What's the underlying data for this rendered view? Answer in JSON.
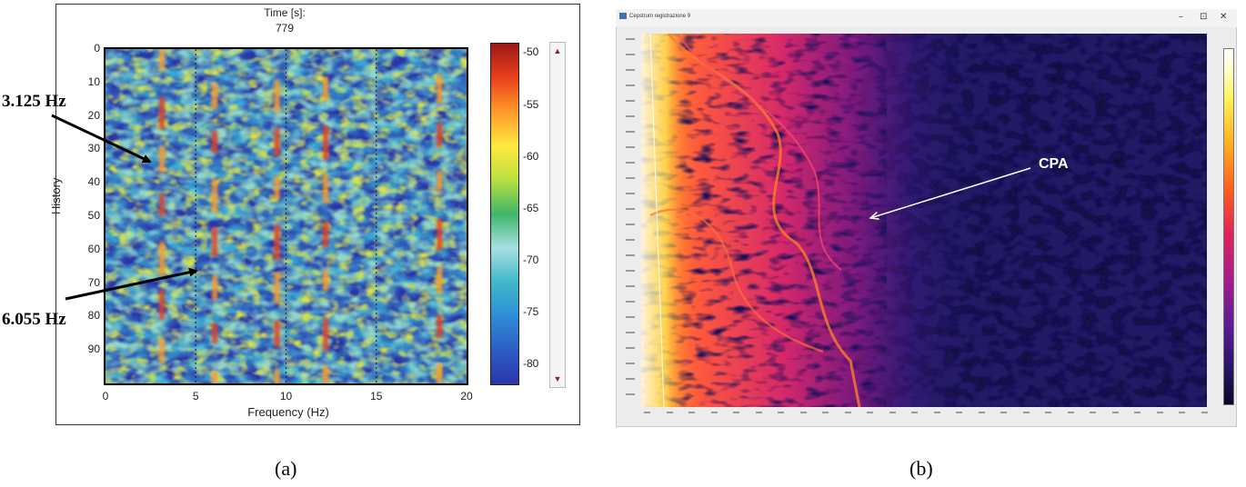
{
  "panel_a": {
    "header_title": "Time [s]:",
    "header_value": "779",
    "annotations": [
      "3.125 Hz",
      "6.055 Hz"
    ]
  },
  "panel_b": {
    "window_title": "Cepstrum registrazione 9",
    "window_controls": [
      "–",
      "⊡",
      "✕"
    ],
    "annotation": "CPA"
  },
  "captions": [
    "(a)",
    "(b)"
  ],
  "colors": {
    "arrow_a": "#000000",
    "arrow_b": "#ffffff",
    "panel_b_background": "#231a66"
  },
  "chart_data": [
    {
      "type": "heatmap",
      "xlabel": "Frequency (Hz)",
      "ylabel": "History",
      "xlim": [
        0,
        20
      ],
      "ylim": [
        0,
        100
      ],
      "y_inverted": true,
      "x_ticks": [
        "0",
        "5",
        "10",
        "15",
        "20"
      ],
      "y_ticks": [
        "0",
        "10",
        "20",
        "30",
        "40",
        "50",
        "60",
        "70",
        "80",
        "90"
      ],
      "grid": "dotted vertical lines at 5, 10, 15",
      "colorbar": {
        "ticks": [
          "-50",
          "-55",
          "-60",
          "-65",
          "-70",
          "-75",
          "-80"
        ],
        "range": [
          -82,
          -49
        ],
        "colors": [
          "#2a36a8",
          "#2c5cc4",
          "#2f8dd6",
          "#40b8c8",
          "#a6e0e0",
          "#3fb56a",
          "#b8e040",
          "#ffe840",
          "#ff9a2a",
          "#e8401c",
          "#9c1818"
        ]
      },
      "ridges_hz": [
        3.125,
        6.055,
        9.5,
        12.2,
        18.5
      ],
      "annotations": [
        {
          "label": "3.125 Hz",
          "x": 3.125,
          "y": 32
        },
        {
          "label": "6.055 Hz",
          "x": 6.055,
          "y": 66
        }
      ]
    },
    {
      "type": "heatmap",
      "title": "Cepstrum registrazione 9",
      "annotation": {
        "label": "CPA"
      },
      "colorbar": {
        "colors": [
          "#0a0828",
          "#281464",
          "#5a1c96",
          "#a51c8c",
          "#e0225a",
          "#ff5a1e",
          "#ffb21e",
          "#fff15a",
          "#ffffff"
        ]
      }
    }
  ]
}
